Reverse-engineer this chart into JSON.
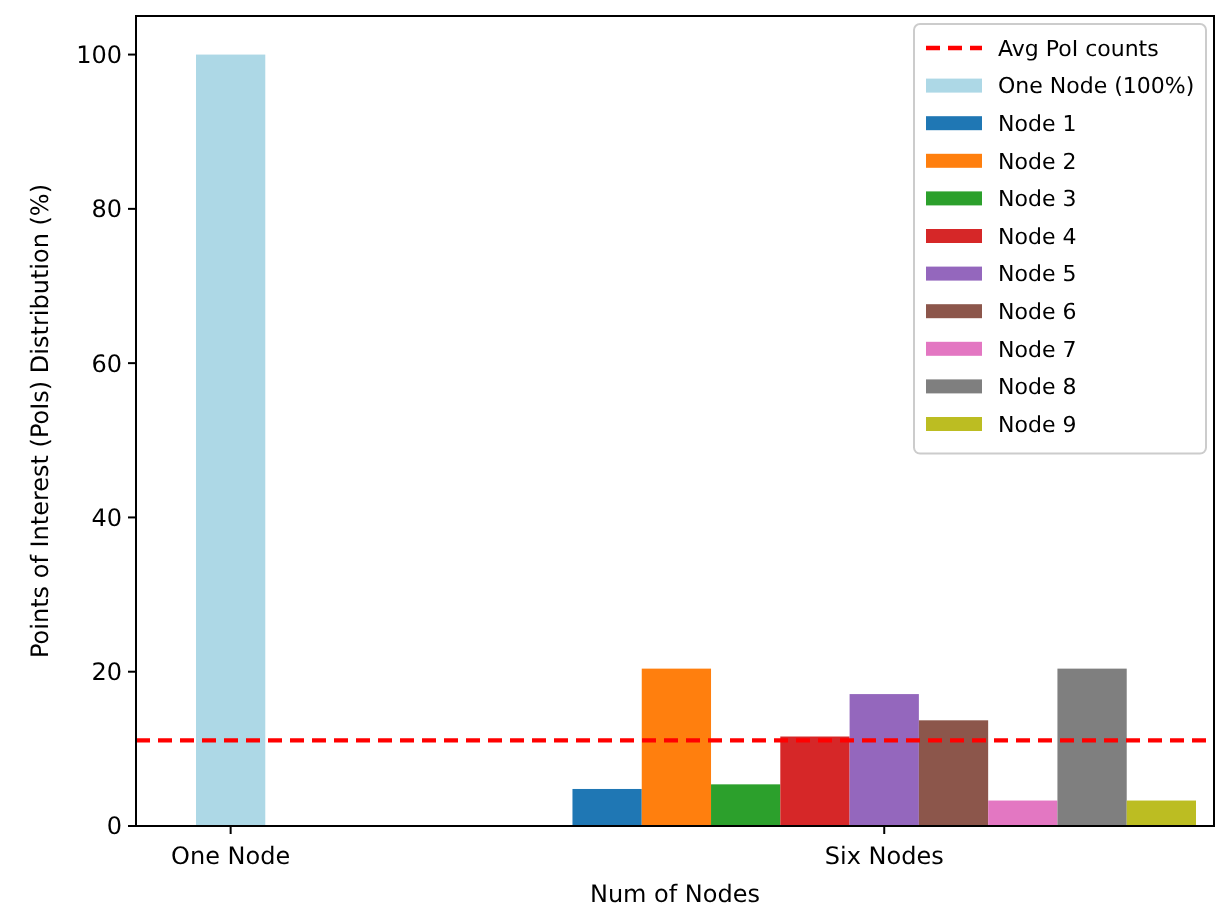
{
  "chart_data": {
    "type": "bar",
    "xlabel": "Num of Nodes",
    "ylabel": "Points of Interest (PoIs) Distribution (%)",
    "categories": [
      "One Node",
      "Six Nodes"
    ],
    "series": [
      {
        "name": "One Node (100%)",
        "color": "#add8e6",
        "values": [
          100,
          null
        ]
      },
      {
        "name": "Node 1",
        "color": "#1f77b4",
        "values": [
          null,
          4.8
        ]
      },
      {
        "name": "Node 2",
        "color": "#ff7f0e",
        "values": [
          null,
          20.4
        ]
      },
      {
        "name": "Node 3",
        "color": "#2ca02c",
        "values": [
          null,
          5.4
        ]
      },
      {
        "name": "Node 4",
        "color": "#d62728",
        "values": [
          null,
          11.6
        ]
      },
      {
        "name": "Node 5",
        "color": "#9467bd",
        "values": [
          null,
          17.1
        ]
      },
      {
        "name": "Node 6",
        "color": "#8c564b",
        "values": [
          null,
          13.7
        ]
      },
      {
        "name": "Node 7",
        "color": "#e377c2",
        "values": [
          null,
          3.3
        ]
      },
      {
        "name": "Node 8",
        "color": "#7f7f7f",
        "values": [
          null,
          20.4
        ]
      },
      {
        "name": "Node 9",
        "color": "#bcbd22",
        "values": [
          null,
          3.3
        ]
      }
    ],
    "ylim": [
      0,
      105
    ],
    "yticks": [
      0,
      20,
      40,
      60,
      80,
      100
    ],
    "ref_lines": [
      {
        "axis": "y",
        "value": 11.1,
        "label": "Avg PoI counts",
        "color": "#ff0000",
        "line_style": "dashed"
      }
    ],
    "legend": "top right"
  }
}
